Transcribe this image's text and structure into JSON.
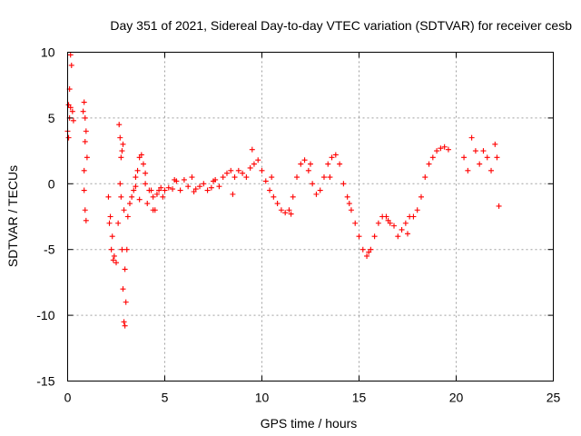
{
  "chart_data": {
    "type": "scatter",
    "title": "Day 351 of 2021, Sidereal Day-to-day VTEC variation (SDTVAR) for receiver cesb",
    "xlabel": "GPS time / hours",
    "ylabel": "SDTVAR / TECUs",
    "xlim": [
      0,
      25
    ],
    "ylim": [
      -15,
      10
    ],
    "x_ticks": [
      0,
      5,
      10,
      15,
      20,
      25
    ],
    "x_tick_labels": [
      "0",
      "5",
      "10",
      "15",
      "20",
      "25"
    ],
    "y_ticks": [
      -15,
      -10,
      -5,
      0,
      5,
      10
    ],
    "y_tick_labels": [
      "-15",
      "-10",
      "-5",
      "0",
      "5",
      "10"
    ],
    "grid": true,
    "marker": "+",
    "color": "#ff0000",
    "series": [
      {
        "name": "SDTVAR",
        "x": [
          0.0,
          0.05,
          0.1,
          0.15,
          0.2,
          0.05,
          0.1,
          0.15,
          0.25,
          0.3,
          0.8,
          0.85,
          0.9,
          0.95,
          1.0,
          0.85,
          0.9,
          0.95,
          0.9,
          0.85,
          2.1,
          2.2,
          2.3,
          2.4,
          2.5,
          2.15,
          2.25,
          2.35,
          2.6,
          2.65,
          2.7,
          2.75,
          2.8,
          2.85,
          2.9,
          2.95,
          3.0,
          3.05,
          2.7,
          2.75,
          2.8,
          2.85,
          2.9,
          2.95,
          3.1,
          3.2,
          3.3,
          3.4,
          3.5,
          3.6,
          3.7,
          3.8,
          3.9,
          4.0,
          4.1,
          4.2,
          4.3,
          4.4,
          4.5,
          4.6,
          4.7,
          4.8,
          4.9,
          5.0,
          5.2,
          5.4,
          5.6,
          5.8,
          6.0,
          6.2,
          6.4,
          6.6,
          6.8,
          7.0,
          7.2,
          7.4,
          7.6,
          7.8,
          8.0,
          8.2,
          8.4,
          8.6,
          8.8,
          9.0,
          9.2,
          9.4,
          9.6,
          9.8,
          10.0,
          10.2,
          10.4,
          10.6,
          10.8,
          11.0,
          11.2,
          11.4,
          11.6,
          11.8,
          12.0,
          12.2,
          12.4,
          12.6,
          12.8,
          13.0,
          13.2,
          13.4,
          13.6,
          13.8,
          14.0,
          14.2,
          14.4,
          14.6,
          14.8,
          15.0,
          15.2,
          15.4,
          15.6,
          15.8,
          16.0,
          16.2,
          16.4,
          16.6,
          16.8,
          17.0,
          17.2,
          17.4,
          17.6,
          17.8,
          18.0,
          18.2,
          18.4,
          18.6,
          18.8,
          19.0,
          19.2,
          19.4,
          19.6,
          20.4,
          20.6,
          20.8,
          21.0,
          21.2,
          21.4,
          21.6,
          21.8,
          22.0,
          22.1,
          22.2,
          3.5,
          3.7,
          4.0,
          4.4,
          5.5,
          6.5,
          7.5,
          8.5,
          9.5,
          10.5,
          11.5,
          12.5,
          13.5,
          14.5,
          15.5,
          16.5,
          17.5
        ],
        "y": [
          4.0,
          6.0,
          7.2,
          9.8,
          9.0,
          3.5,
          5.0,
          5.8,
          5.5,
          4.8,
          5.5,
          6.2,
          5.0,
          4.0,
          2.0,
          -0.5,
          -2.0,
          -2.8,
          3.2,
          1.0,
          -1.0,
          -2.5,
          -4.0,
          -5.5,
          -6.0,
          -3.0,
          -5.0,
          -5.8,
          -3.0,
          4.5,
          3.5,
          2.0,
          -5.0,
          -8.0,
          -10.5,
          -10.8,
          -9.0,
          -5.0,
          0.0,
          -1.0,
          2.5,
          3.0,
          -2.0,
          -6.5,
          -2.5,
          -1.5,
          -1.0,
          -0.5,
          0.5,
          1.0,
          2.0,
          2.2,
          1.5,
          0.0,
          -1.5,
          -0.5,
          -0.5,
          -1.0,
          -2.0,
          -0.8,
          -0.5,
          -0.3,
          -1.0,
          -0.5,
          -0.3,
          -0.4,
          0.2,
          -0.5,
          0.3,
          -0.2,
          0.5,
          -0.4,
          -0.2,
          0.0,
          -0.5,
          -0.3,
          0.3,
          -0.2,
          0.5,
          0.8,
          1.0,
          0.5,
          1.0,
          0.8,
          0.5,
          1.2,
          1.5,
          1.8,
          1.0,
          0.2,
          -0.5,
          -1.0,
          -1.5,
          -2.0,
          -2.2,
          -2.0,
          -1.0,
          0.5,
          1.5,
          1.8,
          1.0,
          0.0,
          -0.8,
          -0.5,
          0.5,
          1.5,
          2.0,
          2.2,
          1.5,
          0.0,
          -1.0,
          -2.0,
          -3.0,
          -4.0,
          -5.0,
          -5.5,
          -5.0,
          -4.0,
          -3.0,
          -2.5,
          -2.5,
          -3.0,
          -3.2,
          -4.0,
          -3.5,
          -3.0,
          -2.5,
          -2.5,
          -2.0,
          -1.0,
          0.5,
          1.5,
          2.0,
          2.5,
          2.7,
          2.8,
          2.6,
          2.0,
          1.0,
          3.5,
          2.5,
          1.5,
          2.5,
          2.0,
          1.0,
          3.0,
          2.0,
          -1.7,
          -0.2,
          -1.2,
          0.8,
          -2.0,
          0.3,
          -0.6,
          0.2,
          -0.8,
          2.6,
          0.5,
          -2.3,
          1.5,
          0.5,
          -1.5,
          -5.2,
          -2.8,
          -3.8
        ]
      }
    ]
  }
}
